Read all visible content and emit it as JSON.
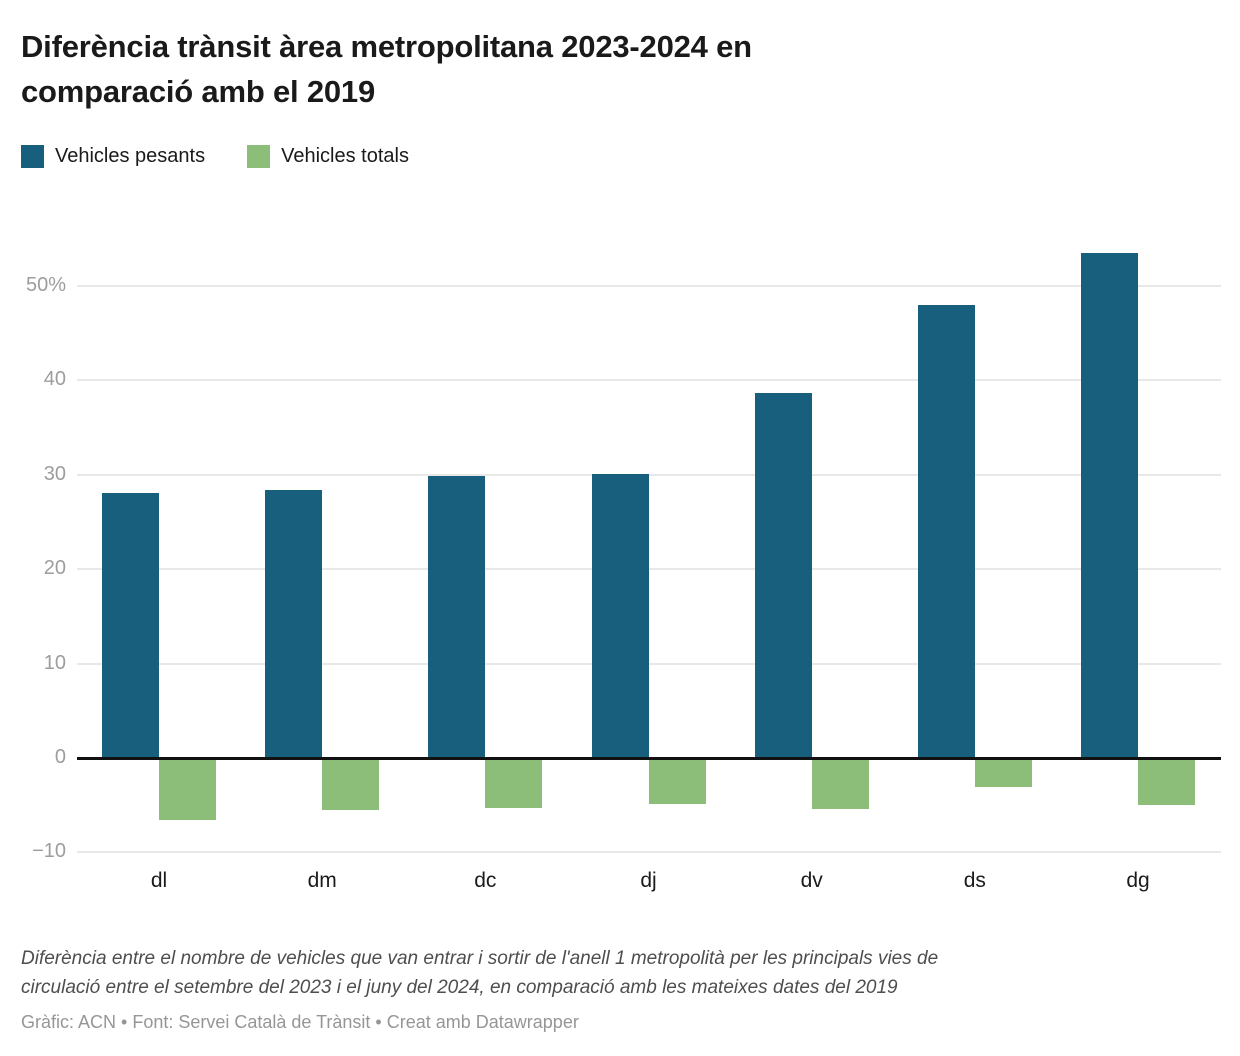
{
  "header": {
    "title_lines": [
      "Diferència trànsit àrea metropolitana 2023-2024 en",
      "comparació amb el 2019"
    ],
    "legend": [
      {
        "label": "Vehicles pesants",
        "color": "#175f7d"
      },
      {
        "label": "Vehicles totals",
        "color": "#8dbe79"
      }
    ]
  },
  "chart_data": {
    "type": "bar",
    "title": "Diferència trànsit àrea metropolitana 2023-2024 en comparació amb el 2019",
    "categories": [
      "dl",
      "dm",
      "dc",
      "dj",
      "dv",
      "ds",
      "dg"
    ],
    "series": [
      {
        "name": "Vehicles pesants",
        "color": "#175f7d",
        "values": [
          28.1,
          28.4,
          29.9,
          30.1,
          38.7,
          48,
          53.5
        ]
      },
      {
        "name": "Vehicles totals",
        "color": "#8dbe79",
        "values": [
          -6.6,
          -5.5,
          -5.3,
          -4.9,
          -5.4,
          -3.1,
          -5
        ]
      }
    ],
    "xlabel": "",
    "ylabel": "",
    "ylim": [
      -10,
      55
    ],
    "yticks": [
      {
        "value": 50,
        "label": "50%"
      },
      {
        "value": 40,
        "label": "40"
      },
      {
        "value": 30,
        "label": "30"
      },
      {
        "value": 20,
        "label": "20"
      },
      {
        "value": 10,
        "label": "10"
      },
      {
        "value": 0,
        "label": "0"
      },
      {
        "value": -10,
        "label": "−10"
      }
    ],
    "grid": true,
    "legend_position": "top-left",
    "unit": "%"
  },
  "footer": {
    "note_lines": [
      "Diferència entre el nombre de vehicles que van entrar i sortir de l'anell 1 metropolità per les principals vies de",
      "circulació entre el setembre del 2023 i el juny del 2024, en comparació amb les mateixes dates del 2019"
    ],
    "credit": "Gràfic: ACN • Font: Servei Català de Trànsit • Creat amb Datawrapper"
  }
}
